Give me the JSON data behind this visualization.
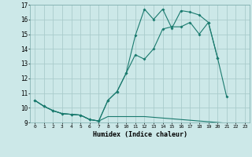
{
  "xlabel": "Humidex (Indice chaleur)",
  "bg_color": "#cce8e8",
  "grid_color": "#aacccc",
  "line_color": "#1a7a6e",
  "xlim": [
    -0.5,
    23.5
  ],
  "ylim": [
    9,
    17
  ],
  "yticks": [
    9,
    10,
    11,
    12,
    13,
    14,
    15,
    16,
    17
  ],
  "xticks": [
    0,
    1,
    2,
    3,
    4,
    5,
    6,
    7,
    8,
    9,
    10,
    11,
    12,
    13,
    14,
    15,
    16,
    17,
    18,
    19,
    20,
    21,
    22,
    23
  ],
  "line1_x": [
    0,
    1,
    2,
    3,
    4,
    5,
    6,
    7,
    8,
    9,
    10,
    11,
    12,
    13,
    14,
    15,
    16,
    17,
    18,
    19,
    20,
    21,
    22,
    23
  ],
  "line1_y": [
    10.5,
    10.1,
    9.8,
    9.6,
    9.55,
    9.5,
    9.2,
    9.1,
    9.4,
    9.4,
    9.4,
    9.4,
    9.4,
    9.35,
    9.3,
    9.25,
    9.2,
    9.15,
    9.1,
    9.05,
    9.0,
    8.95,
    8.9,
    8.85
  ],
  "line2_x": [
    0,
    1,
    2,
    3,
    4,
    5,
    6,
    7,
    8,
    9,
    10,
    11,
    12,
    13,
    14,
    15,
    16,
    17,
    18,
    19,
    20,
    21
  ],
  "line2_y": [
    10.5,
    10.1,
    9.8,
    9.6,
    9.55,
    9.5,
    9.2,
    9.1,
    10.5,
    11.1,
    12.35,
    13.6,
    13.3,
    14.0,
    15.35,
    15.5,
    15.5,
    15.8,
    15.0,
    15.8,
    13.4,
    10.75
  ],
  "line3_x": [
    0,
    1,
    2,
    3,
    4,
    5,
    6,
    7,
    8,
    9,
    10,
    11,
    12,
    13,
    14,
    15,
    16,
    17,
    18,
    19,
    20
  ],
  "line3_y": [
    10.5,
    10.1,
    9.8,
    9.6,
    9.55,
    9.5,
    9.2,
    9.1,
    10.5,
    11.1,
    12.35,
    14.9,
    16.7,
    16.0,
    16.7,
    15.4,
    16.6,
    16.5,
    16.3,
    15.8,
    13.4
  ]
}
